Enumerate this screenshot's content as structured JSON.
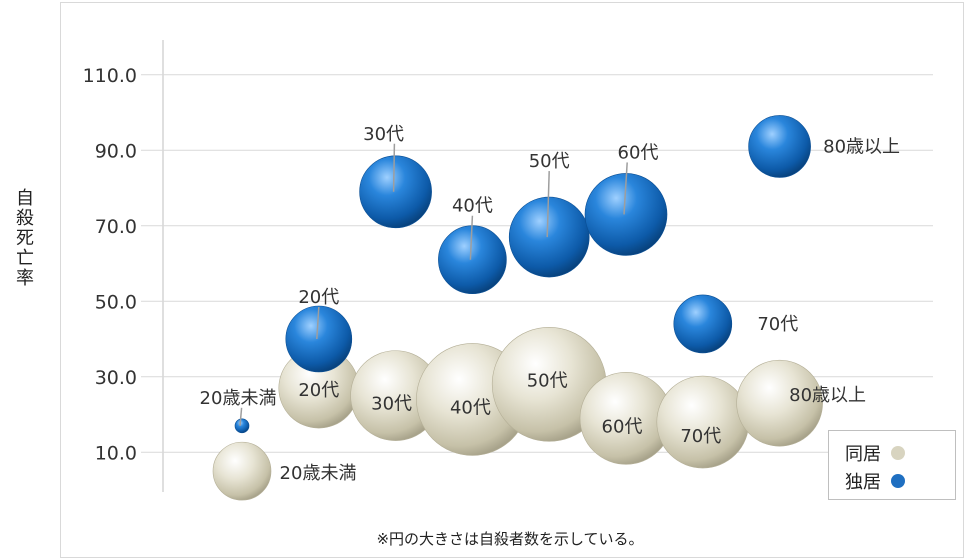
{
  "chart_data": {
    "type": "bubble",
    "ylabel": "自殺死亡率",
    "ylim": [
      0,
      120
    ],
    "yticks": [
      "10.0",
      "30.0",
      "50.0",
      "70.0",
      "90.0",
      "110.0"
    ],
    "ytick_values": [
      10,
      30,
      50,
      70,
      90,
      110
    ],
    "note": "※円の大きさは自殺者数を示している。",
    "legend_position": "bottom-right",
    "series": [
      {
        "name": "同居",
        "color": "#d8d4c0",
        "points": [
          {
            "label": "20歳未満",
            "x": 1,
            "y": 5,
            "size": 29
          },
          {
            "label": "20代",
            "x": 2,
            "y": 27,
            "size": 40
          },
          {
            "label": "30代",
            "x": 3,
            "y": 25,
            "size": 45
          },
          {
            "label": "40代",
            "x": 4,
            "y": 24,
            "size": 56
          },
          {
            "label": "50代",
            "x": 5,
            "y": 28,
            "size": 57
          },
          {
            "label": "60代",
            "x": 6,
            "y": 19,
            "size": 46
          },
          {
            "label": "70代",
            "x": 7,
            "y": 18,
            "size": 46
          },
          {
            "label": "80歳以上",
            "x": 8,
            "y": 23,
            "size": 43
          }
        ]
      },
      {
        "name": "独居",
        "color": "#1f6fc1",
        "points": [
          {
            "label": "20歳未満",
            "x": 1,
            "y": 17,
            "size": 7
          },
          {
            "label": "20代",
            "x": 2,
            "y": 40,
            "size": 33
          },
          {
            "label": "30代",
            "x": 3,
            "y": 79,
            "size": 36
          },
          {
            "label": "40代",
            "x": 4,
            "y": 61,
            "size": 34
          },
          {
            "label": "50代",
            "x": 5,
            "y": 67,
            "size": 40
          },
          {
            "label": "60代",
            "x": 6,
            "y": 73,
            "size": 41
          },
          {
            "label": "70代",
            "x": 7,
            "y": 44,
            "size": 29
          },
          {
            "label": "80歳以上",
            "x": 8,
            "y": 91,
            "size": 31
          }
        ]
      }
    ]
  }
}
